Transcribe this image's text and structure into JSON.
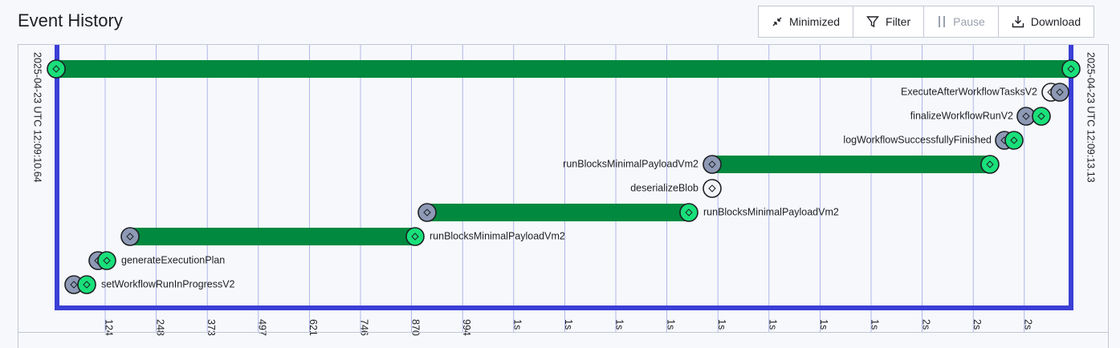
{
  "header": {
    "title": "Event History",
    "buttons": [
      "Minimized",
      "Filter",
      "Pause",
      "Download"
    ]
  },
  "timeline": {
    "start_label": "2025-04-23 UTC 12:09:10.64",
    "end_label": "2025-04-23 UTC 12:09:13.13",
    "events": [
      {
        "label": "ExecuteAfterWorkflowTasksV2"
      },
      {
        "label": "finalizeWorkflowRunV2"
      },
      {
        "label": "logWorkflowSuccessfullyFinished"
      },
      {
        "label": "runBlocksMinimalPayloadVm2"
      },
      {
        "label": "deserializeBlob"
      },
      {
        "label": "runBlocksMinimalPayloadVm2"
      },
      {
        "label": "runBlocksMinimalPayloadVm2"
      },
      {
        "label": "generateExecutionPlan"
      },
      {
        "label": "setWorkflowRunInProgressV2"
      }
    ],
    "ticks": [
      "124",
      "248",
      "373",
      "497",
      "621",
      "746",
      "870",
      "994",
      "1s",
      "1s",
      "1s",
      "1s",
      "1s",
      "1s",
      "1s",
      "1s",
      "2s",
      "2s",
      "2s"
    ]
  }
}
